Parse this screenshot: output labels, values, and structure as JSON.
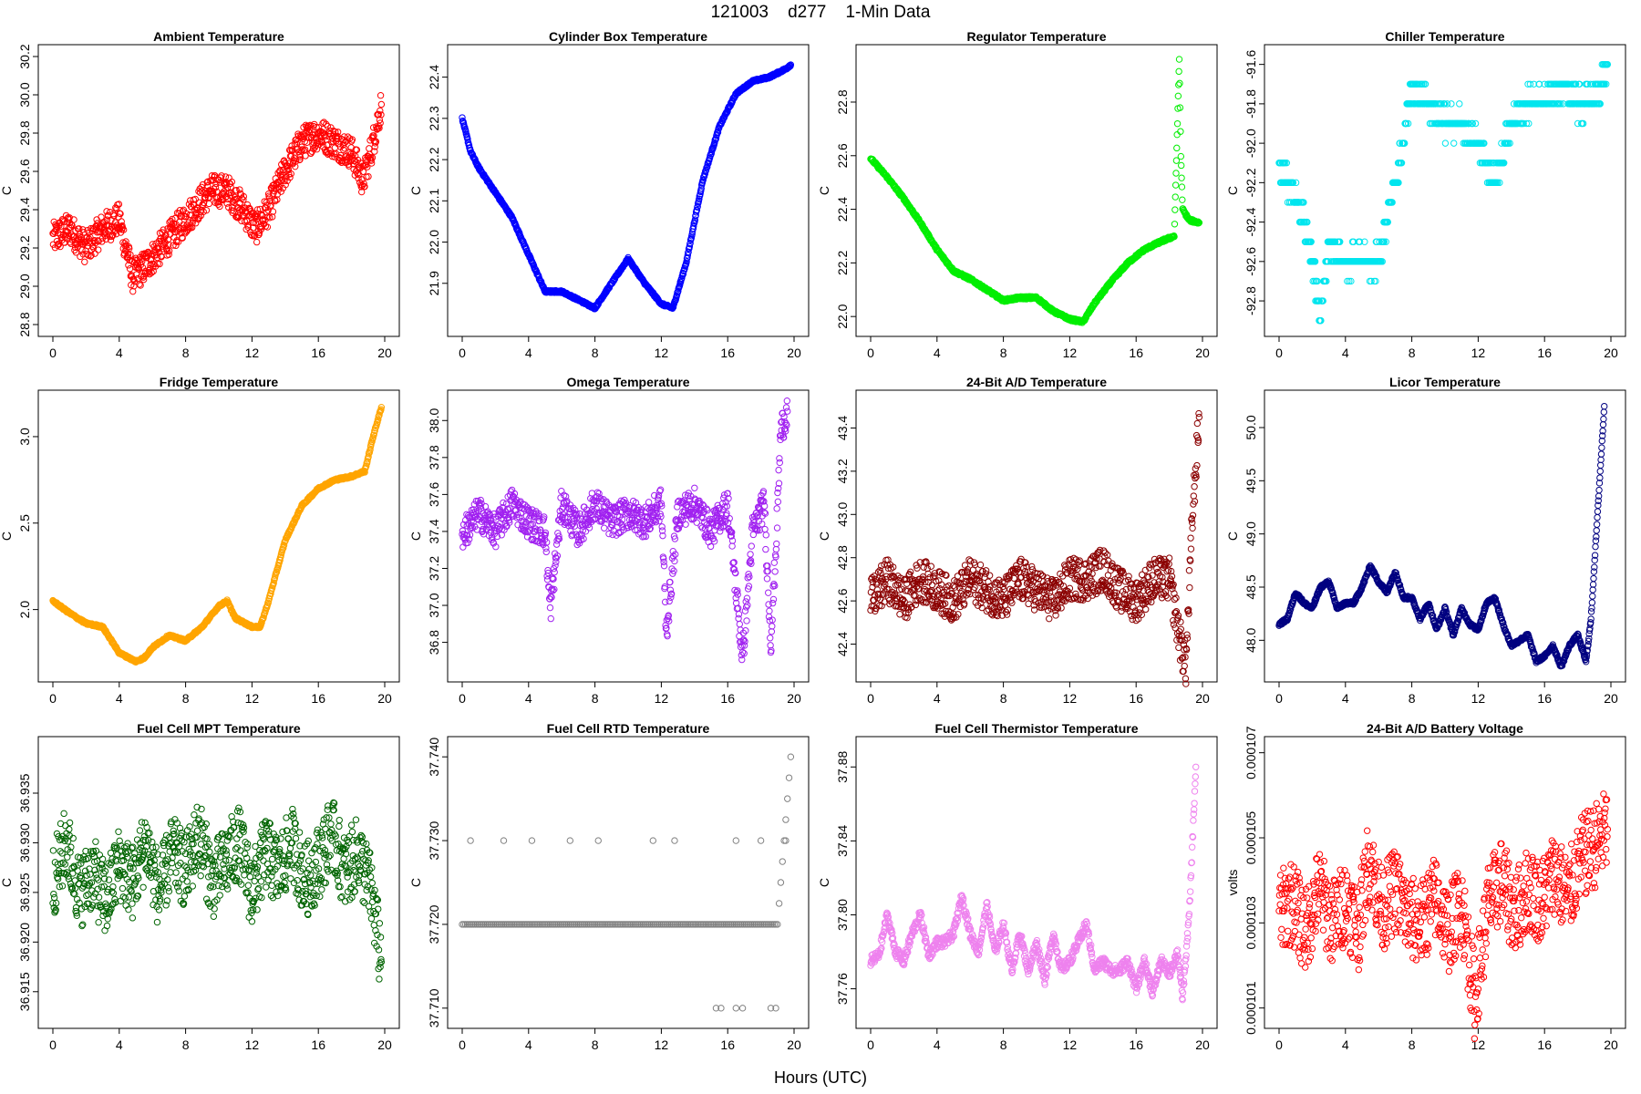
{
  "figure": {
    "title": "121003    d277    1-Min Data",
    "xlabel": "Hours (UTC)"
  },
  "chart_data": [
    {
      "type": "scatter",
      "title": "Ambient Temperature",
      "ylabel": "C",
      "color": "#ff0000",
      "xlim": [
        0,
        20
      ],
      "xticks": [
        0,
        4,
        8,
        12,
        16,
        20
      ],
      "ylim": [
        28.8,
        30.2
      ],
      "yticks": [
        "28.8",
        "29.0",
        "29.2",
        "29.4",
        "29.6",
        "29.8",
        "30.0",
        "30.2"
      ],
      "series": [
        {
          "x": [
            0,
            1,
            2,
            3,
            4,
            4.8,
            5.5,
            6.5,
            7.5,
            8.5,
            9.5,
            10.5,
            11.5,
            12.2,
            13,
            14,
            15,
            16,
            17,
            18,
            18.7,
            19.3,
            19.8
          ],
          "y": [
            29.25,
            29.3,
            29.2,
            29.3,
            29.35,
            29.05,
            29.1,
            29.2,
            29.3,
            29.4,
            29.5,
            29.5,
            29.4,
            29.3,
            29.4,
            29.6,
            29.75,
            29.8,
            29.75,
            29.7,
            29.55,
            29.75,
            29.95
          ]
        }
      ]
    },
    {
      "type": "scatter",
      "title": "Cylinder Box Temperature",
      "ylabel": "C",
      "color": "#0000ff",
      "xlim": [
        0,
        20
      ],
      "xticks": [
        0,
        4,
        8,
        12,
        16,
        20
      ],
      "ylim": [
        21.8,
        22.45
      ],
      "yticks": [
        "21.9",
        "22.0",
        "22.1",
        "22.2",
        "22.3",
        "22.4"
      ],
      "series": [
        {
          "x": [
            0,
            0.5,
            1,
            2,
            3,
            4,
            5,
            6,
            7,
            8,
            9,
            10,
            11,
            12,
            12.7,
            13.5,
            14.5,
            15.5,
            16.5,
            17.5,
            18.5,
            19.5,
            19.8
          ],
          "y": [
            22.3,
            22.22,
            22.18,
            22.12,
            22.06,
            21.97,
            21.88,
            21.88,
            21.86,
            21.84,
            21.9,
            21.96,
            21.9,
            21.85,
            21.84,
            21.95,
            22.15,
            22.28,
            22.36,
            22.39,
            22.4,
            22.42,
            22.43
          ]
        }
      ]
    },
    {
      "type": "scatter",
      "title": "Regulator Temperature",
      "ylabel": "C",
      "color": "#00ee00",
      "xlim": [
        0,
        20
      ],
      "xticks": [
        0,
        4,
        8,
        12,
        16,
        20
      ],
      "ylim": [
        21.97,
        22.97
      ],
      "yticks": [
        "22.0",
        "22.2",
        "22.4",
        "22.6",
        "22.8"
      ],
      "series": [
        {
          "x": [
            0,
            1,
            2,
            3,
            4,
            5,
            6,
            7,
            8,
            9,
            10,
            11,
            12,
            12.8,
            13.5,
            14.5,
            15.5,
            16.5,
            17.5,
            18.3,
            18.6,
            18.7,
            18.8,
            19.2,
            19.8
          ],
          "y": [
            22.59,
            22.52,
            22.44,
            22.35,
            22.25,
            22.17,
            22.14,
            22.1,
            22.06,
            22.07,
            22.07,
            22.02,
            21.99,
            21.98,
            22.05,
            22.13,
            22.2,
            22.25,
            22.28,
            22.3,
            22.96,
            22.6,
            22.4,
            22.36,
            22.35
          ]
        }
      ]
    },
    {
      "type": "scatter",
      "title": "Chiller Temperature",
      "ylabel": "C",
      "color": "#00e5ee",
      "xlim": [
        0,
        20
      ],
      "xticks": [
        0,
        4,
        8,
        12,
        16,
        20
      ],
      "ylim": [
        -92.92,
        -91.56
      ],
      "yticks": [
        "-92.8",
        "-92.6",
        "-92.4",
        "-92.2",
        "-92.0",
        "-91.8",
        "-91.6"
      ],
      "series": [
        {
          "x": [
            0,
            0.5,
            1,
            1.5,
            2,
            2.5,
            3,
            4,
            5,
            6,
            7,
            7.5,
            8,
            9,
            10,
            11,
            12,
            13,
            14,
            15,
            16,
            17,
            18,
            19,
            19.8
          ],
          "y": [
            -92.1,
            -92.2,
            -92.3,
            -92.4,
            -92.6,
            -92.9,
            -92.5,
            -92.6,
            -92.6,
            -92.6,
            -92.2,
            -92.0,
            -91.7,
            -91.8,
            -91.9,
            -91.9,
            -92.0,
            -92.2,
            -91.9,
            -91.8,
            -91.8,
            -91.7,
            -91.8,
            -91.8,
            -91.6
          ]
        }
      ]
    },
    {
      "type": "scatter",
      "title": "Fridge Temperature",
      "ylabel": "C",
      "color": "#ffa500",
      "xlim": [
        0,
        20
      ],
      "xticks": [
        0,
        4,
        8,
        12,
        16,
        20
      ],
      "ylim": [
        1.65,
        3.2
      ],
      "yticks": [
        "2.0",
        "2.5",
        "3.0"
      ],
      "series": [
        {
          "x": [
            0,
            1,
            2,
            3,
            4,
            5,
            5.5,
            6,
            7,
            8,
            9,
            10,
            10.5,
            11,
            12,
            12.5,
            13,
            14,
            15,
            16,
            17,
            18,
            18.8,
            19.3,
            19.8
          ],
          "y": [
            2.05,
            1.98,
            1.92,
            1.9,
            1.75,
            1.7,
            1.72,
            1.78,
            1.85,
            1.82,
            1.9,
            2.02,
            2.05,
            1.95,
            1.9,
            1.9,
            2.05,
            2.4,
            2.6,
            2.7,
            2.75,
            2.77,
            2.8,
            3.0,
            3.17
          ]
        }
      ]
    },
    {
      "type": "scatter",
      "title": "Omega Temperature",
      "ylabel": "C",
      "color": "#a020f0",
      "xlim": [
        0,
        20
      ],
      "xticks": [
        0,
        4,
        8,
        12,
        16,
        20
      ],
      "ylim": [
        36.65,
        38.1
      ],
      "yticks": [
        "36.8",
        "37.0",
        "37.2",
        "37.4",
        "37.6",
        "37.8",
        "38.0"
      ],
      "series": [
        {
          "x": [
            0,
            1,
            2,
            3,
            4,
            5,
            5.3,
            6,
            7,
            8,
            9,
            10,
            11,
            12,
            12.3,
            13,
            14,
            15,
            16,
            16.9,
            17.5,
            18.2,
            18.6,
            18.9,
            19.2,
            19.6
          ],
          "y": [
            37.38,
            37.5,
            37.4,
            37.55,
            37.45,
            37.4,
            36.97,
            37.55,
            37.4,
            37.55,
            37.45,
            37.5,
            37.45,
            37.55,
            36.85,
            37.5,
            37.55,
            37.4,
            37.55,
            36.72,
            37.4,
            37.55,
            36.8,
            37.3,
            37.95,
            38.05
          ]
        }
      ]
    },
    {
      "type": "scatter",
      "title": "24-Bit A/D Temperature",
      "ylabel": "C",
      "color": "#8b0000",
      "xlim": [
        0,
        20
      ],
      "xticks": [
        0,
        4,
        8,
        12,
        16,
        20
      ],
      "ylim": [
        42.28,
        43.52
      ],
      "yticks": [
        "42.4",
        "42.6",
        "42.8",
        "43.0",
        "43.2",
        "43.4"
      ],
      "series": [
        {
          "x": [
            0,
            1,
            2,
            3,
            4,
            5,
            6,
            7,
            8,
            9,
            10,
            11,
            12,
            13,
            14,
            15,
            16,
            17,
            18,
            18.7,
            19,
            19.4,
            19.8
          ],
          "y": [
            42.6,
            42.7,
            42.6,
            42.7,
            42.65,
            42.6,
            42.7,
            42.65,
            42.6,
            42.7,
            42.65,
            42.6,
            42.7,
            42.7,
            42.75,
            42.65,
            42.6,
            42.7,
            42.7,
            42.4,
            42.3,
            43.0,
            43.45
          ]
        }
      ]
    },
    {
      "type": "scatter",
      "title": "Licor Temperature",
      "ylabel": "C",
      "color": "#000080",
      "xlim": [
        0,
        20
      ],
      "xticks": [
        0,
        4,
        8,
        12,
        16,
        20
      ],
      "ylim": [
        47.72,
        50.24
      ],
      "yticks": [
        "48.0",
        "48.5",
        "49.0",
        "49.5",
        "50.0"
      ],
      "series": [
        {
          "x": [
            0,
            0.5,
            1,
            1.5,
            2,
            2.5,
            3,
            3.5,
            4,
            4.5,
            5,
            5.5,
            6,
            6.5,
            7,
            7.5,
            8,
            8.5,
            9,
            9.5,
            10,
            10.5,
            11,
            11.5,
            12,
            12.5,
            13,
            13.5,
            14,
            14.5,
            15,
            15.5,
            16,
            16.5,
            17,
            17.5,
            18,
            18.5,
            18.8,
            19.2,
            19.6
          ],
          "y": [
            48.15,
            48.2,
            48.45,
            48.35,
            48.3,
            48.5,
            48.55,
            48.3,
            48.35,
            48.35,
            48.5,
            48.7,
            48.55,
            48.45,
            48.65,
            48.4,
            48.4,
            48.2,
            48.35,
            48.1,
            48.3,
            48.05,
            48.3,
            48.15,
            48.1,
            48.35,
            48.4,
            48.15,
            47.95,
            48.0,
            48.05,
            47.8,
            47.85,
            47.95,
            47.75,
            47.95,
            48.05,
            47.8,
            48.2,
            49.2,
            50.2
          ]
        }
      ]
    },
    {
      "type": "scatter",
      "title": "Fuel Cell MPT Temperature",
      "ylabel": "C",
      "color": "#006400",
      "xlim": [
        0,
        20
      ],
      "xticks": [
        0,
        4,
        8,
        12,
        16,
        20
      ],
      "ylim": [
        36.9125,
        36.9395
      ],
      "yticks": [
        "36.915",
        "36.920",
        "36.925",
        "36.930",
        "36.935"
      ],
      "series": [
        {
          "x": [
            0,
            0.8,
            1.6,
            2.4,
            3.2,
            4,
            4.8,
            5.6,
            6.4,
            7.2,
            8,
            8.8,
            9.6,
            10.4,
            11.2,
            12,
            12.8,
            13.6,
            14.4,
            15.2,
            16,
            16.8,
            17.6,
            18.4,
            19.2,
            19.8
          ],
          "y": [
            36.926,
            36.93,
            36.925,
            36.927,
            36.924,
            36.928,
            36.926,
            36.93,
            36.925,
            36.929,
            36.927,
            36.931,
            36.926,
            36.928,
            36.93,
            36.925,
            36.929,
            36.927,
            36.93,
            36.926,
            36.928,
            36.931,
            36.927,
            36.929,
            36.925,
            36.918
          ]
        }
      ]
    },
    {
      "type": "scatter",
      "title": "Fuel Cell RTD Temperature",
      "ylabel": "C",
      "color": "#808080",
      "xlim": [
        0,
        20
      ],
      "xticks": [
        0,
        4,
        8,
        12,
        16,
        20
      ],
      "ylim": [
        37.709,
        37.741
      ],
      "yticks": [
        "37.710",
        "37.720",
        "37.730",
        "37.740"
      ],
      "series": [
        {
          "x": [
            0,
            1,
            2,
            3,
            4,
            5,
            6,
            7,
            8,
            9,
            10,
            11,
            12,
            13,
            14,
            15,
            16,
            17,
            18,
            19,
            19.8
          ],
          "y": [
            37.72,
            37.72,
            37.72,
            37.72,
            37.72,
            37.72,
            37.72,
            37.72,
            37.72,
            37.72,
            37.72,
            37.72,
            37.72,
            37.72,
            37.72,
            37.72,
            37.72,
            37.72,
            37.72,
            37.72,
            37.74
          ]
        },
        {
          "x": [
            0.5,
            2.5,
            4.2,
            6.5,
            8.2,
            11.5,
            12.8,
            16.5,
            18,
            19.5
          ],
          "y": [
            37.73,
            37.73,
            37.73,
            37.73,
            37.73,
            37.73,
            37.73,
            37.73,
            37.73,
            37.73
          ]
        },
        {
          "x": [
            15.3,
            15.6,
            16.5,
            16.9,
            18.6,
            18.9
          ],
          "y": [
            37.71,
            37.71,
            37.71,
            37.71,
            37.71,
            37.71
          ]
        }
      ]
    },
    {
      "type": "scatter",
      "title": "Fuel Cell Thermistor Temperature",
      "ylabel": "C",
      "color": "#ee82ee",
      "xlim": [
        0,
        20
      ],
      "xticks": [
        0,
        4,
        8,
        12,
        16,
        20
      ],
      "ylim": [
        37.745,
        37.89
      ],
      "yticks": [
        "37.76",
        "37.80",
        "37.84",
        "37.88"
      ],
      "series": [
        {
          "x": [
            0,
            0.5,
            1,
            1.5,
            2,
            2.5,
            3,
            3.5,
            4,
            4.5,
            5,
            5.5,
            6,
            6.5,
            7,
            7.5,
            8,
            8.5,
            9,
            9.5,
            10,
            10.5,
            11,
            11.5,
            12,
            12.5,
            13,
            13.5,
            14,
            14.5,
            15,
            15.5,
            16,
            16.5,
            17,
            17.5,
            18,
            18.5,
            18.8,
            19.2,
            19.6
          ],
          "y": [
            37.775,
            37.778,
            37.8,
            37.78,
            37.775,
            37.79,
            37.8,
            37.778,
            37.785,
            37.785,
            37.79,
            37.81,
            37.79,
            37.78,
            37.805,
            37.78,
            37.795,
            37.77,
            37.79,
            37.77,
            37.785,
            37.765,
            37.79,
            37.77,
            37.775,
            37.785,
            37.795,
            37.77,
            37.775,
            37.77,
            37.77,
            37.775,
            37.76,
            37.775,
            37.758,
            37.775,
            37.768,
            37.78,
            37.755,
            37.8,
            37.88
          ]
        }
      ]
    },
    {
      "type": "scatter",
      "title": "24-Bit A/D Battery Voltage",
      "ylabel": "volts",
      "color": "#ff0000",
      "xlim": [
        0,
        20
      ],
      "xticks": [
        0,
        4,
        8,
        12,
        16,
        20
      ],
      "ylim": [
        0.0001008,
        0.0001071
      ],
      "yticks": [
        "0.000101",
        "0.000103",
        "0.000105",
        "0.000107"
      ],
      "series": [
        {
          "x": [
            0,
            0.8,
            1.6,
            2.4,
            3.2,
            4,
            4.8,
            5.4,
            6.2,
            7,
            7.8,
            8.6,
            9.4,
            10.2,
            11,
            11.8,
            12.6,
            13.4,
            14.2,
            15,
            15.8,
            16.6,
            17.4,
            18.2,
            19,
            19.8
          ],
          "y": [
            0.0001032,
            0.0001035,
            0.0001028,
            0.0001038,
            0.000103,
            0.0001035,
            0.0001029,
            0.0001045,
            0.0001033,
            0.0001038,
            0.0001031,
            0.000103,
            0.0001036,
            0.0001028,
            0.0001035,
            0.0001012,
            0.0001034,
            0.000104,
            0.0001032,
            0.0001038,
            0.0001035,
            0.0001042,
            0.0001036,
            0.0001045,
            0.0001048,
            0.0001052
          ]
        }
      ]
    }
  ]
}
